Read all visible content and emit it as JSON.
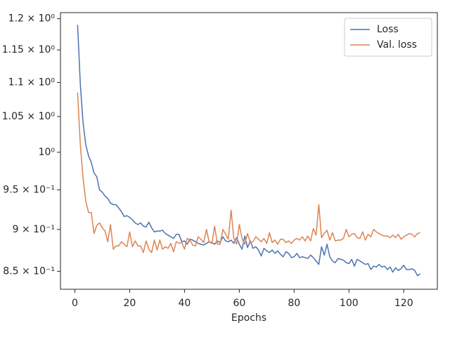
{
  "chart_data": {
    "type": "line",
    "xlabel": "Epochs",
    "x": [
      1,
      2,
      3,
      4,
      5,
      6,
      7,
      8,
      9,
      10,
      11,
      12,
      13,
      14,
      15,
      16,
      17,
      18,
      19,
      20,
      21,
      22,
      23,
      24,
      25,
      26,
      27,
      28,
      29,
      30,
      31,
      32,
      33,
      34,
      35,
      36,
      37,
      38,
      39,
      40,
      41,
      42,
      43,
      44,
      45,
      46,
      47,
      48,
      49,
      50,
      51,
      52,
      53,
      54,
      55,
      56,
      57,
      58,
      59,
      60,
      61,
      62,
      63,
      64,
      65,
      66,
      67,
      68,
      69,
      70,
      71,
      72,
      73,
      74,
      75,
      76,
      77,
      78,
      79,
      80,
      81,
      82,
      83,
      84,
      85,
      86,
      87,
      88,
      89,
      90,
      91,
      92,
      93,
      94,
      95,
      96,
      97,
      98,
      99,
      100,
      101,
      102,
      103,
      104,
      105,
      106,
      107,
      108,
      109,
      110,
      111,
      112,
      113,
      114,
      115,
      116,
      117,
      118,
      119,
      120,
      121,
      122,
      123,
      124,
      125,
      126
    ],
    "series": [
      {
        "name": "Loss",
        "color": "#4c72b0",
        "values": [
          1.19,
          1.097,
          1.041,
          1.01,
          0.995,
          0.986,
          0.972,
          0.967,
          0.95,
          0.947,
          0.942,
          0.939,
          0.933,
          0.931,
          0.931,
          0.927,
          0.922,
          0.916,
          0.917,
          0.915,
          0.912,
          0.908,
          0.906,
          0.908,
          0.904,
          0.903,
          0.909,
          0.902,
          0.897,
          0.898,
          0.898,
          0.899,
          0.895,
          0.893,
          0.891,
          0.889,
          0.894,
          0.894,
          0.885,
          0.886,
          0.882,
          0.888,
          0.887,
          0.885,
          0.883,
          0.882,
          0.881,
          0.883,
          0.885,
          0.884,
          0.882,
          0.886,
          0.884,
          0.891,
          0.886,
          0.885,
          0.887,
          0.883,
          0.89,
          0.882,
          0.876,
          0.892,
          0.878,
          0.886,
          0.877,
          0.879,
          0.875,
          0.868,
          0.877,
          0.874,
          0.872,
          0.875,
          0.871,
          0.874,
          0.87,
          0.867,
          0.873,
          0.871,
          0.866,
          0.867,
          0.871,
          0.866,
          0.867,
          0.866,
          0.865,
          0.869,
          0.866,
          0.862,
          0.858,
          0.879,
          0.869,
          0.882,
          0.867,
          0.862,
          0.86,
          0.865,
          0.864,
          0.863,
          0.86,
          0.859,
          0.864,
          0.856,
          0.864,
          0.862,
          0.86,
          0.858,
          0.859,
          0.852,
          0.856,
          0.855,
          0.858,
          0.855,
          0.856,
          0.852,
          0.855,
          0.849,
          0.854,
          0.851,
          0.853,
          0.857,
          0.852,
          0.852,
          0.853,
          0.851,
          0.845,
          0.847
        ]
      },
      {
        "name": "Val. loss",
        "color": "#dd8452",
        "values": [
          1.085,
          1.01,
          0.965,
          0.935,
          0.921,
          0.921,
          0.895,
          0.905,
          0.908,
          0.902,
          0.898,
          0.885,
          0.906,
          0.876,
          0.88,
          0.88,
          0.885,
          0.882,
          0.879,
          0.897,
          0.879,
          0.886,
          0.88,
          0.88,
          0.872,
          0.886,
          0.876,
          0.872,
          0.887,
          0.875,
          0.887,
          0.876,
          0.879,
          0.877,
          0.883,
          0.873,
          0.885,
          0.883,
          0.884,
          0.876,
          0.889,
          0.887,
          0.881,
          0.88,
          0.891,
          0.888,
          0.884,
          0.9,
          0.885,
          0.883,
          0.904,
          0.882,
          0.882,
          0.9,
          0.894,
          0.888,
          0.924,
          0.889,
          0.882,
          0.906,
          0.889,
          0.882,
          0.895,
          0.884,
          0.885,
          0.891,
          0.888,
          0.885,
          0.889,
          0.883,
          0.896,
          0.884,
          0.887,
          0.882,
          0.888,
          0.888,
          0.884,
          0.886,
          0.883,
          0.887,
          0.889,
          0.887,
          0.891,
          0.886,
          0.892,
          0.886,
          0.901,
          0.893,
          0.931,
          0.89,
          0.895,
          0.899,
          0.887,
          0.896,
          0.886,
          0.887,
          0.887,
          0.889,
          0.9,
          0.891,
          0.894,
          0.895,
          0.89,
          0.889,
          0.897,
          0.887,
          0.894,
          0.891,
          0.9,
          0.897,
          0.895,
          0.893,
          0.892,
          0.892,
          0.89,
          0.893,
          0.89,
          0.894,
          0.888,
          0.891,
          0.893,
          0.895,
          0.894,
          0.891,
          0.895,
          0.896
        ]
      }
    ],
    "xlim": [
      -5.25,
      132.25
    ],
    "xticks": [
      0,
      20,
      40,
      60,
      80,
      100,
      120
    ],
    "ylim": [
      0.8294,
      1.21
    ],
    "ylog": true,
    "yticks": [
      {
        "value": 0.85,
        "label": "8.5 × 10⁻¹"
      },
      {
        "value": 0.9,
        "label": "9 × 10⁻¹"
      },
      {
        "value": 0.95,
        "label": "9.5 × 10⁻¹"
      },
      {
        "value": 1,
        "label": "10⁰"
      },
      {
        "value": 1.05,
        "label": "1.05 × 10⁰"
      },
      {
        "value": 1.1,
        "label": "1.1 × 10⁰"
      },
      {
        "value": 1.15,
        "label": "1.15 × 10⁰"
      },
      {
        "value": 1.2,
        "label": "1.2 × 10⁰"
      }
    ],
    "legend": "upper right"
  }
}
